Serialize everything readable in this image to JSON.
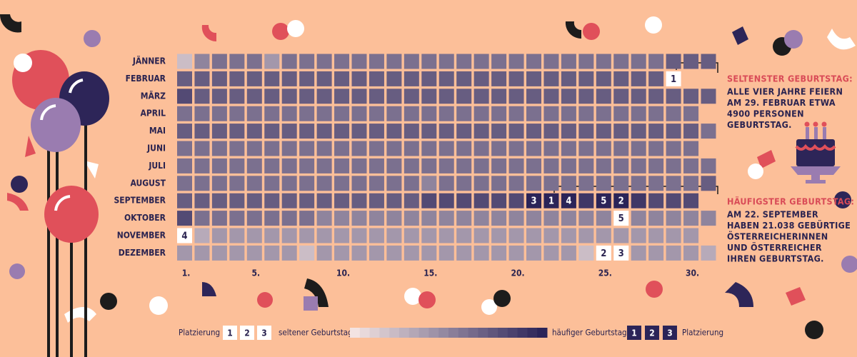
{
  "chart_data": {
    "type": "heatmap",
    "months": [
      "JÄNNER",
      "FEBRUAR",
      "MÄRZ",
      "APRIL",
      "MAI",
      "JUNI",
      "JULI",
      "AUGUST",
      "SEPTEMBER",
      "OKTOBER",
      "NOVEMBER",
      "DEZEMBER"
    ],
    "xticks": [
      {
        "value": 1,
        "label": "1."
      },
      {
        "value": 5,
        "label": "5."
      },
      {
        "value": 10,
        "label": "10."
      },
      {
        "value": 15,
        "label": "15."
      },
      {
        "value": 20,
        "label": "20."
      },
      {
        "value": 25,
        "label": "25."
      },
      {
        "value": 30,
        "label": "30."
      }
    ],
    "zlim": [
      0,
      10
    ],
    "color_scale": [
      "#f3e3e2",
      "#2b2458"
    ],
    "values": [
      [
        2,
        5,
        6,
        6,
        6,
        4,
        6,
        6,
        6,
        6,
        6,
        6,
        6,
        6,
        6,
        6,
        6,
        6,
        6,
        6,
        6,
        6,
        6,
        6,
        6,
        6,
        6,
        6,
        7,
        7,
        7
      ],
      [
        7,
        7,
        7,
        7,
        7,
        7,
        7,
        7,
        7,
        7,
        7,
        7,
        7,
        7,
        7,
        7,
        7,
        7,
        7,
        7,
        7,
        7,
        7,
        7,
        7,
        7,
        7,
        7,
        0,
        null,
        null
      ],
      [
        8,
        7,
        7,
        7,
        7,
        7,
        7,
        7,
        7,
        7,
        7,
        7,
        7,
        7,
        7,
        7,
        7,
        7,
        7,
        7,
        7,
        7,
        7,
        7,
        7,
        7,
        7,
        7,
        7,
        7,
        7
      ],
      [
        6,
        6,
        6,
        6,
        6,
        6,
        6,
        6,
        6,
        6,
        6,
        6,
        6,
        6,
        6,
        6,
        6,
        6,
        6,
        6,
        6,
        6,
        6,
        6,
        6,
        6,
        6,
        6,
        6,
        6,
        null
      ],
      [
        7,
        7,
        7,
        7,
        7,
        7,
        7,
        7,
        7,
        7,
        7,
        7,
        7,
        7,
        7,
        7,
        7,
        7,
        7,
        7,
        7,
        7,
        7,
        7,
        7,
        7,
        7,
        7,
        7,
        7,
        6
      ],
      [
        6,
        6,
        6,
        6,
        6,
        6,
        6,
        6,
        6,
        6,
        6,
        6,
        6,
        6,
        6,
        6,
        6,
        6,
        6,
        6,
        6,
        6,
        6,
        6,
        6,
        6,
        6,
        6,
        6,
        6,
        null
      ],
      [
        6,
        6,
        6,
        6,
        6,
        6,
        6,
        6,
        6,
        6,
        6,
        6,
        6,
        6,
        6,
        6,
        6,
        6,
        6,
        6,
        6,
        6,
        6,
        6,
        6,
        6,
        6,
        6,
        6,
        6,
        6
      ],
      [
        6,
        6,
        6,
        6,
        6,
        6,
        6,
        6,
        6,
        6,
        6,
        6,
        6,
        6,
        5,
        6,
        6,
        6,
        6,
        6,
        6,
        6,
        6,
        6,
        6,
        6,
        6,
        6,
        6,
        6,
        7
      ],
      [
        7,
        7,
        7,
        7,
        7,
        7,
        7,
        7,
        7,
        7,
        7,
        7,
        7,
        7,
        8,
        8,
        8,
        8,
        8,
        8,
        9,
        10,
        9,
        9,
        9,
        10,
        9,
        8,
        8,
        8,
        null
      ],
      [
        8,
        6,
        6,
        6,
        6,
        6,
        6,
        6,
        5,
        5,
        5,
        5,
        5,
        5,
        5,
        5,
        5,
        5,
        5,
        5,
        5,
        5,
        5,
        5,
        5,
        2,
        5,
        5,
        5,
        5,
        5
      ],
      [
        1,
        3,
        4,
        4,
        4,
        4,
        4,
        4,
        4,
        4,
        4,
        4,
        4,
        4,
        4,
        4,
        4,
        4,
        4,
        4,
        4,
        4,
        4,
        4,
        4,
        4,
        4,
        4,
        4,
        4,
        null
      ],
      [
        4,
        4,
        4,
        4,
        4,
        4,
        4,
        2,
        4,
        4,
        4,
        4,
        4,
        4,
        4,
        4,
        4,
        4,
        4,
        4,
        4,
        4,
        4,
        2,
        1,
        1,
        4,
        4,
        4,
        4,
        3
      ]
    ],
    "rare_days": [
      {
        "rank": 1,
        "month": 2,
        "day": 29
      },
      {
        "rank": 2,
        "month": 12,
        "day": 25
      },
      {
        "rank": 3,
        "month": 12,
        "day": 26
      },
      {
        "rank": 4,
        "month": 11,
        "day": 1
      },
      {
        "rank": 5,
        "month": 10,
        "day": 26
      }
    ],
    "common_days": [
      {
        "rank": 1,
        "month": 9,
        "day": 22
      },
      {
        "rank": 2,
        "month": 9,
        "day": 26
      },
      {
        "rank": 3,
        "month": 9,
        "day": 21
      },
      {
        "rank": 4,
        "month": 9,
        "day": 23
      },
      {
        "rank": 5,
        "month": 9,
        "day": 25
      }
    ],
    "annotations": [
      {
        "title": "SELTENSTER GEBURTSTAG:",
        "lines": [
          "ALLE VIER JAHRE FEIERN",
          "AM 29. FEBRUAR ETWA",
          "4900 PERSONEN",
          "GEBURTSTAG."
        ]
      },
      {
        "title": "HÄUFIGSTER GEBURTSTAG:",
        "lines": [
          "AM 22. SEPTEMBER",
          "HABEN 21.038 GEBÜRTIGE",
          "ÖSTERREICHERINNEN",
          "UND ÖSTERREICHER",
          "IHREN GEBURTSTAG."
        ]
      }
    ],
    "legend": {
      "rank_label": "Platzierung",
      "ranks": [
        1,
        2,
        3
      ],
      "low_label": "seltener Geburtstag",
      "high_label": "häufiger Geburtstag"
    }
  }
}
